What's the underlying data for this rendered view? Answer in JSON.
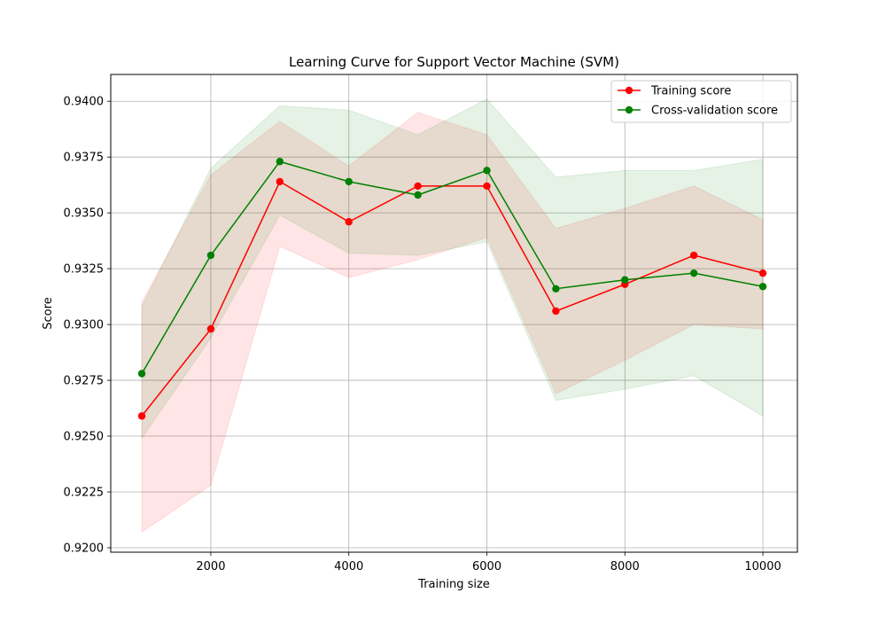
{
  "chart_data": {
    "type": "line",
    "title": "Learning Curve for Support Vector Machine (SVM)",
    "xlabel": "Training size",
    "ylabel": "Score",
    "xlim": [
      550,
      10500
    ],
    "ylim": [
      0.9198,
      0.9412
    ],
    "x_ticks": [
      2000,
      4000,
      6000,
      8000,
      10000
    ],
    "y_ticks": [
      0.92,
      0.9225,
      0.925,
      0.9275,
      0.93,
      0.9325,
      0.935,
      0.9375,
      0.94
    ],
    "grid": true,
    "legend_position": "top-right",
    "x": [
      1000,
      2000,
      3000,
      4000,
      5000,
      6000,
      7000,
      8000,
      9000,
      10000
    ],
    "series": [
      {
        "name": "Training score",
        "color": "#ff0000",
        "band_color": "#ff0000",
        "values": [
          0.9259,
          0.9298,
          0.9364,
          0.9346,
          0.9362,
          0.9362,
          0.9306,
          0.9318,
          0.9331,
          0.9323
        ],
        "band_lower": [
          0.9207,
          0.9228,
          0.9335,
          0.9321,
          0.9329,
          0.9339,
          0.9269,
          0.9284,
          0.93,
          0.9298
        ],
        "band_upper": [
          0.931,
          0.9367,
          0.9391,
          0.9371,
          0.9395,
          0.9385,
          0.9343,
          0.9352,
          0.9362,
          0.9347
        ]
      },
      {
        "name": "Cross-validation score",
        "color": "#008000",
        "band_color": "#008000",
        "values": [
          0.9278,
          0.9331,
          0.9373,
          0.9364,
          0.9358,
          0.9369,
          0.9316,
          0.932,
          0.9323,
          0.9317
        ],
        "band_lower": [
          0.9249,
          0.9294,
          0.9349,
          0.9332,
          0.9331,
          0.9337,
          0.9266,
          0.9271,
          0.9277,
          0.9259
        ],
        "band_upper": [
          0.9308,
          0.937,
          0.9398,
          0.9396,
          0.9385,
          0.9401,
          0.9366,
          0.9369,
          0.9369,
          0.9374
        ]
      }
    ]
  }
}
